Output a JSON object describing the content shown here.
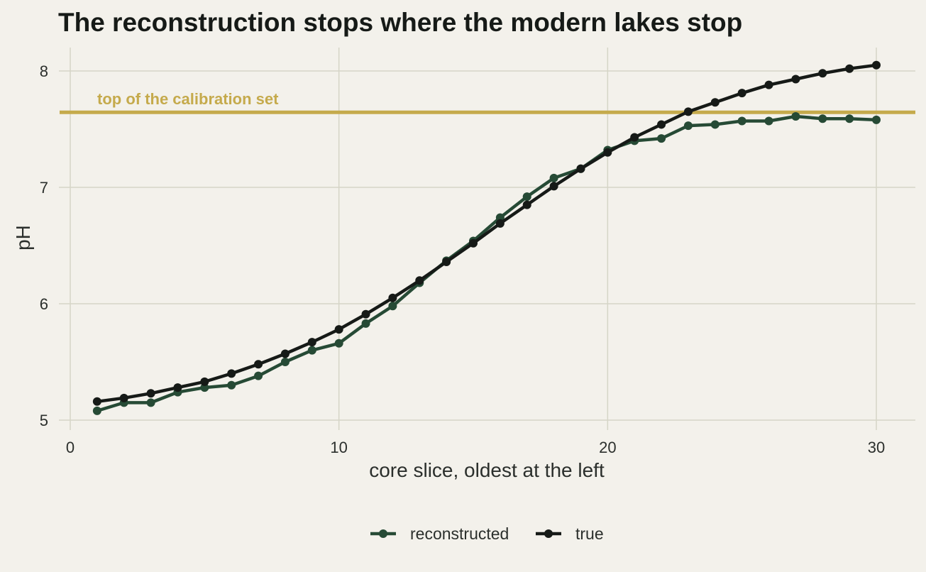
{
  "chart_data": {
    "type": "line",
    "title": "The reconstruction stops where the modern lakes stop",
    "xlabel": "core slice, oldest at the left",
    "ylabel": "pH",
    "xlim": [
      -0.5,
      31.5
    ],
    "ylim": [
      4.95,
      8.2
    ],
    "x_ticks": [
      0,
      10,
      20,
      30
    ],
    "y_ticks": [
      5,
      6,
      7,
      8
    ],
    "grid": true,
    "legend_position": "bottom",
    "x": [
      1,
      2,
      3,
      4,
      5,
      6,
      7,
      8,
      9,
      10,
      11,
      12,
      13,
      14,
      15,
      16,
      17,
      18,
      19,
      20,
      21,
      22,
      23,
      24,
      25,
      26,
      27,
      28,
      29,
      30
    ],
    "series": [
      {
        "name": "reconstructed",
        "color": "#264a35",
        "values": [
          5.08,
          5.15,
          5.15,
          5.24,
          5.28,
          5.3,
          5.38,
          5.5,
          5.6,
          5.66,
          5.83,
          5.98,
          6.18,
          6.37,
          6.54,
          6.74,
          6.92,
          7.08,
          7.16,
          7.32,
          7.4,
          7.42,
          7.53,
          7.54,
          7.57,
          7.57,
          7.61,
          7.59,
          7.59,
          7.58
        ]
      },
      {
        "name": "true",
        "color": "#161a17",
        "values": [
          5.16,
          5.19,
          5.23,
          5.28,
          5.33,
          5.4,
          5.48,
          5.57,
          5.67,
          5.78,
          5.91,
          6.05,
          6.2,
          6.36,
          6.52,
          6.69,
          6.85,
          7.01,
          7.16,
          7.3,
          7.43,
          7.54,
          7.65,
          7.73,
          7.81,
          7.88,
          7.93,
          7.98,
          8.02,
          8.05
        ]
      }
    ],
    "reference_line": {
      "y": 7.645,
      "label": "top of the calibration set",
      "color": "#c5aa4c"
    }
  }
}
